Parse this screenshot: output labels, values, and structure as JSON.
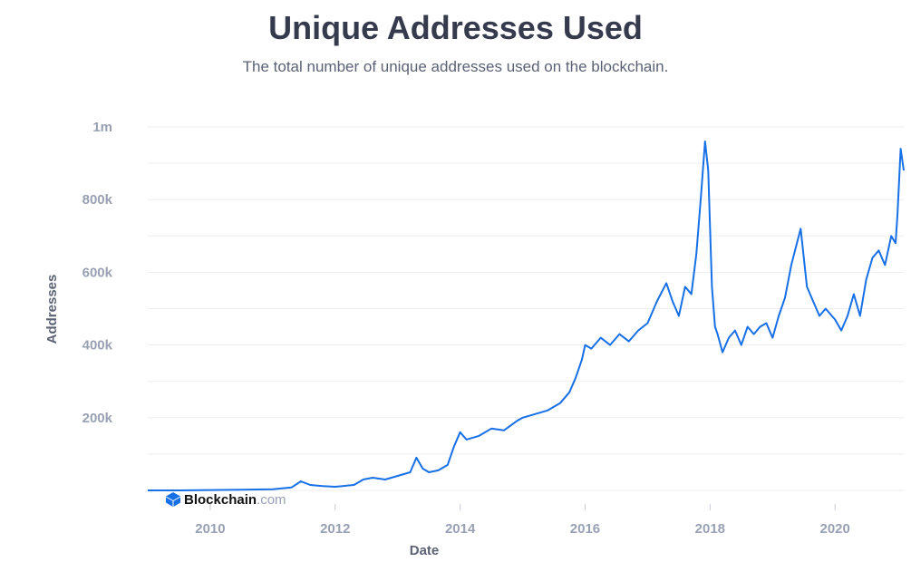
{
  "header": {
    "title": "Unique Addresses Used",
    "subtitle": "The total number of unique addresses used on the blockchain."
  },
  "branding": {
    "name": "Blockchain",
    "suffix": ".com",
    "icon": "blockchain-logo-icon"
  },
  "colors": {
    "line": "#1770e6",
    "grid": "#eeeeee",
    "tick": "#98a1b3",
    "label": "#5b6274"
  },
  "chart_data": {
    "type": "line",
    "title": "Unique Addresses Used",
    "subtitle": "The total number of unique addresses used on the blockchain.",
    "xlabel": "Date",
    "ylabel": "Addresses",
    "xlim": [
      2009.0,
      2021.1
    ],
    "ylim": [
      0,
      1000000
    ],
    "x_ticks": [
      2010,
      2012,
      2014,
      2016,
      2018,
      2020
    ],
    "x_tick_labels": [
      "2010",
      "2012",
      "2014",
      "2016",
      "2018",
      "2020"
    ],
    "y_ticks": [
      200000,
      400000,
      600000,
      800000,
      1000000
    ],
    "y_tick_labels": [
      "200k",
      "400k",
      "600k",
      "800k",
      "1m"
    ],
    "grid": true,
    "series": [
      {
        "x": [
          2009.0,
          2009.5,
          2010.0,
          2010.5,
          2011.0,
          2011.3,
          2011.45,
          2011.6,
          2011.8,
          2012.0,
          2012.3,
          2012.45,
          2012.6,
          2012.8,
          2013.0,
          2013.2,
          2013.3,
          2013.4,
          2013.5,
          2013.65,
          2013.8,
          2013.9,
          2014.0,
          2014.1,
          2014.3,
          2014.5,
          2014.7,
          2014.9,
          2015.0,
          2015.2,
          2015.4,
          2015.6,
          2015.75,
          2015.85,
          2015.95,
          2016.0,
          2016.1,
          2016.25,
          2016.4,
          2016.55,
          2016.7,
          2016.85,
          2017.0,
          2017.15,
          2017.3,
          2017.4,
          2017.5,
          2017.6,
          2017.7,
          2017.78,
          2017.85,
          2017.92,
          2017.97,
          2018.03,
          2018.08,
          2018.12,
          2018.2,
          2018.3,
          2018.4,
          2018.5,
          2018.6,
          2018.7,
          2018.8,
          2018.9,
          2019.0,
          2019.1,
          2019.2,
          2019.3,
          2019.45,
          2019.55,
          2019.65,
          2019.75,
          2019.85,
          2020.0,
          2020.1,
          2020.2,
          2020.3,
          2020.4,
          2020.5,
          2020.6,
          2020.7,
          2020.8,
          2020.9,
          2020.97,
          2021.0,
          2021.05,
          2021.1
        ],
        "values": [
          0,
          0,
          1000,
          2000,
          3000,
          8000,
          25000,
          15000,
          12000,
          10000,
          15000,
          30000,
          35000,
          30000,
          40000,
          50000,
          90000,
          60000,
          50000,
          55000,
          70000,
          120000,
          160000,
          140000,
          150000,
          170000,
          165000,
          190000,
          200000,
          210000,
          220000,
          240000,
          270000,
          310000,
          360000,
          400000,
          390000,
          420000,
          400000,
          430000,
          410000,
          440000,
          460000,
          520000,
          570000,
          520000,
          480000,
          560000,
          540000,
          650000,
          800000,
          960000,
          880000,
          560000,
          450000,
          430000,
          380000,
          420000,
          440000,
          400000,
          450000,
          430000,
          450000,
          460000,
          420000,
          480000,
          530000,
          620000,
          720000,
          560000,
          520000,
          480000,
          500000,
          470000,
          440000,
          480000,
          540000,
          480000,
          580000,
          640000,
          660000,
          620000,
          700000,
          680000,
          760000,
          940000,
          880000
        ]
      }
    ]
  }
}
